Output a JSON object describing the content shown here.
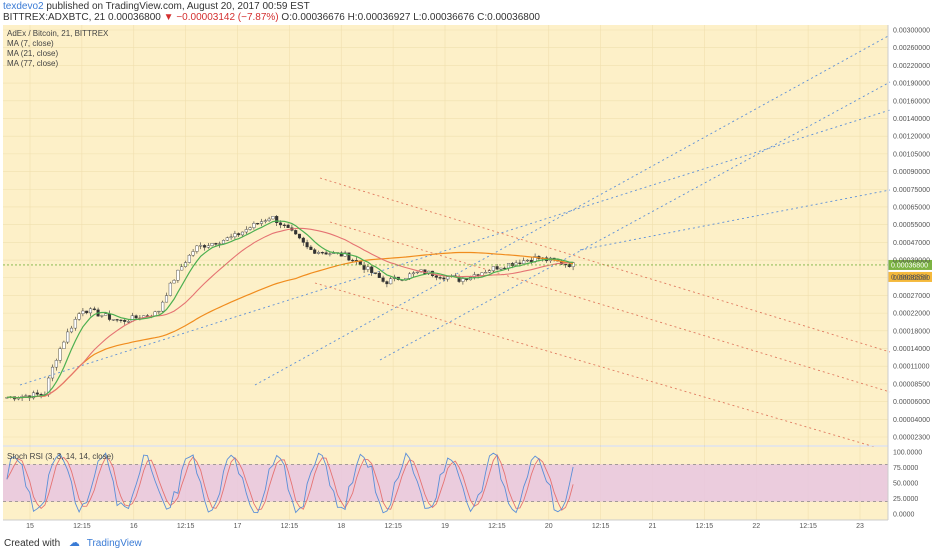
{
  "header": {
    "username": "texdevo2",
    "published": "published on TradingView.com, August 20, 2017 00:59 EST",
    "symbol": "BITTREX:ADXBTC, 21",
    "last": "0.00036800",
    "change": "▼ −0.00003142 (−7.87%)",
    "ohlc": "O:0.00036676 H:0.00036927 L:0.00036676 C:0.00036800"
  },
  "legend": {
    "title": "AdEx / Bitcoin, 21, BITTREX",
    "ma7": "MA (7, close)",
    "ma21": "MA (21, close)",
    "ma77": "MA (77, close)",
    "rsi": "Stoch RSI (3, 3, 14, 14, close)"
  },
  "footer": {
    "created_with": "Created with",
    "brand": "TradingView"
  },
  "colors": {
    "background": "#fdf0c8",
    "ma7": "#e57373",
    "ma21": "#4caf50",
    "ma77": "#f08c1e",
    "channel_blue": "#5b8fd8",
    "channel_red": "#e07a5f",
    "rsi_k": "#5b8fd8",
    "rsi_d": "#e57373",
    "rsi_band": "#e7c6e0",
    "price_line": "#7cb342"
  },
  "chart_data": [
    {
      "type": "line",
      "title": "AdEx / Bitcoin, 21, BITTREX",
      "x_ticks": [
        "15",
        "12:15",
        "16",
        "12:15",
        "17",
        "12:15",
        "18",
        "12:15",
        "19",
        "12:15",
        "20",
        "12:15",
        "21",
        "12:15",
        "22",
        "12:15",
        "23"
      ],
      "y_ticks": [
        "0.00300000",
        "0.00260000",
        "0.00220000",
        "0.00190000",
        "0.00160000",
        "0.00140000",
        "0.00120000",
        "0.00105000",
        "0.00090000",
        "0.00075000",
        "0.00065000",
        "0.00055000",
        "0.00047000",
        "0.00039000",
        "0.00032000",
        "0.00027000",
        "0.00022000",
        "0.00018000",
        "0.00014000",
        "0.00011000",
        "0.00008500",
        "0.00006000",
        "0.00004000",
        "0.00002300"
      ],
      "price_labels": [
        "0.00036800",
        "0.00036550"
      ],
      "price_key_values": [
        7.8e-05,
        8.1e-05,
        0.00022,
        0.00019,
        0.00021,
        0.00045,
        0.00051,
        0.00065,
        0.00044,
        0.00041,
        0.0003,
        0.00034,
        0.00031,
        0.00036,
        0.0004,
        0.000368
      ],
      "series": [
        {
          "name": "MA (7, close)"
        },
        {
          "name": "MA (21, close)"
        },
        {
          "name": "MA (77, close)"
        }
      ]
    },
    {
      "type": "line",
      "title": "Stoch RSI (3, 3, 14, 14, close)",
      "y_ticks": [
        "100.0000",
        "75.0000",
        "50.0000",
        "25.0000",
        "0.0000"
      ],
      "band": [
        20,
        80
      ],
      "ylim": [
        0,
        100
      ]
    }
  ]
}
